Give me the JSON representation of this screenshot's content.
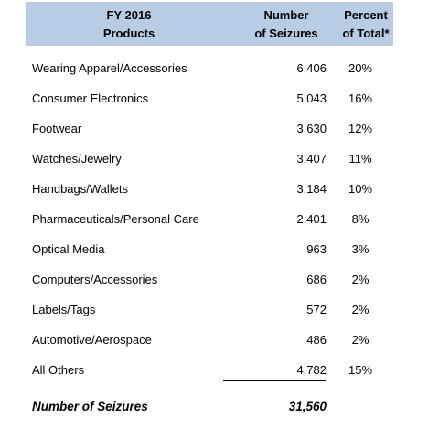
{
  "chart_data": {
    "type": "table",
    "columns": [
      "FY 2016 Products",
      "Number of Seizures",
      "Percent of Total*"
    ],
    "header": {
      "products": [
        "FY 2016",
        "Products"
      ],
      "number": [
        "Number",
        "of Seizures"
      ],
      "percent": [
        "Percent",
        "of Total*"
      ]
    },
    "rows": [
      {
        "product": "Wearing Apparel/Accessories",
        "count": "6,406",
        "pct": "20%"
      },
      {
        "product": "Consumer Electronics",
        "count": "5,043",
        "pct": "16%"
      },
      {
        "product": "Footwear",
        "count": "3,630",
        "pct": "12%"
      },
      {
        "product": "Watches/Jewelry",
        "count": "3,407",
        "pct": "11%"
      },
      {
        "product": "Handbags/Wallets",
        "count": "3,184",
        "pct": "10%"
      },
      {
        "product": "Pharmaceuticals/Personal Care",
        "count": "2,401",
        "pct": "8%"
      },
      {
        "product": "Optical Media",
        "count": "963",
        "pct": "3%"
      },
      {
        "product": "Computers/Accessories",
        "count": "686",
        "pct": "2%"
      },
      {
        "product": "Labels/Tags",
        "count": "572",
        "pct": "2%"
      },
      {
        "product": "Automotive/Aerospace",
        "count": "486",
        "pct": "2%"
      },
      {
        "product": "All Others",
        "count": "4,782",
        "pct": "15%"
      }
    ],
    "total": {
      "label": "Number of Seizures",
      "count": "31,560"
    }
  },
  "colors": {
    "header_background": "#b8cce4",
    "text": "#000000"
  }
}
